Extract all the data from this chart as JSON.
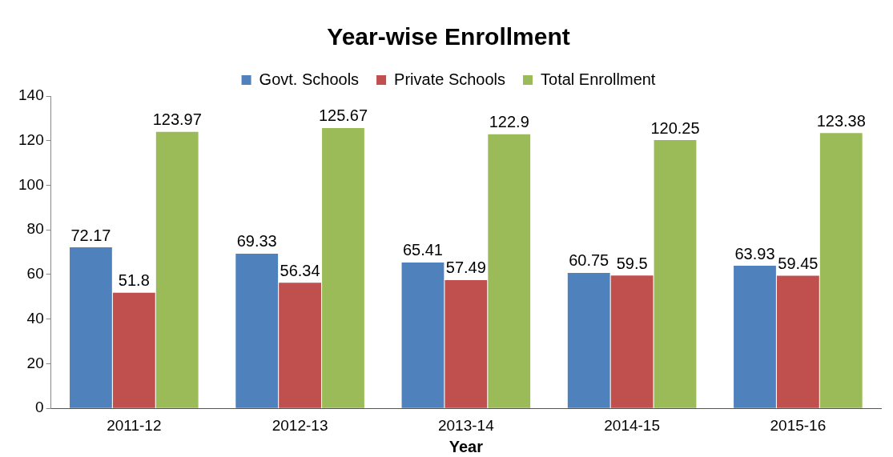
{
  "chart_data": {
    "type": "bar",
    "title": "Year-wise Enrollment",
    "xlabel": "Year",
    "categories": [
      "2011-12",
      "2012-13",
      "2013-14",
      "2014-15",
      "2015-16"
    ],
    "series": [
      {
        "name": "Govt. Schools",
        "color": "#4f81bd",
        "values": [
          72.17,
          69.33,
          65.41,
          60.75,
          63.93
        ]
      },
      {
        "name": "Private Schools",
        "color": "#c0504d",
        "values": [
          51.8,
          56.34,
          57.49,
          59.5,
          59.45
        ]
      },
      {
        "name": "Total Enrollment",
        "color": "#9bbb59",
        "values": [
          123.97,
          125.67,
          122.9,
          120.25,
          123.38
        ]
      }
    ],
    "ylim": [
      0,
      140
    ],
    "yticks": [
      0,
      20,
      40,
      60,
      80,
      100,
      120,
      140
    ],
    "grid": false,
    "legend": "top",
    "data_labels": true
  }
}
